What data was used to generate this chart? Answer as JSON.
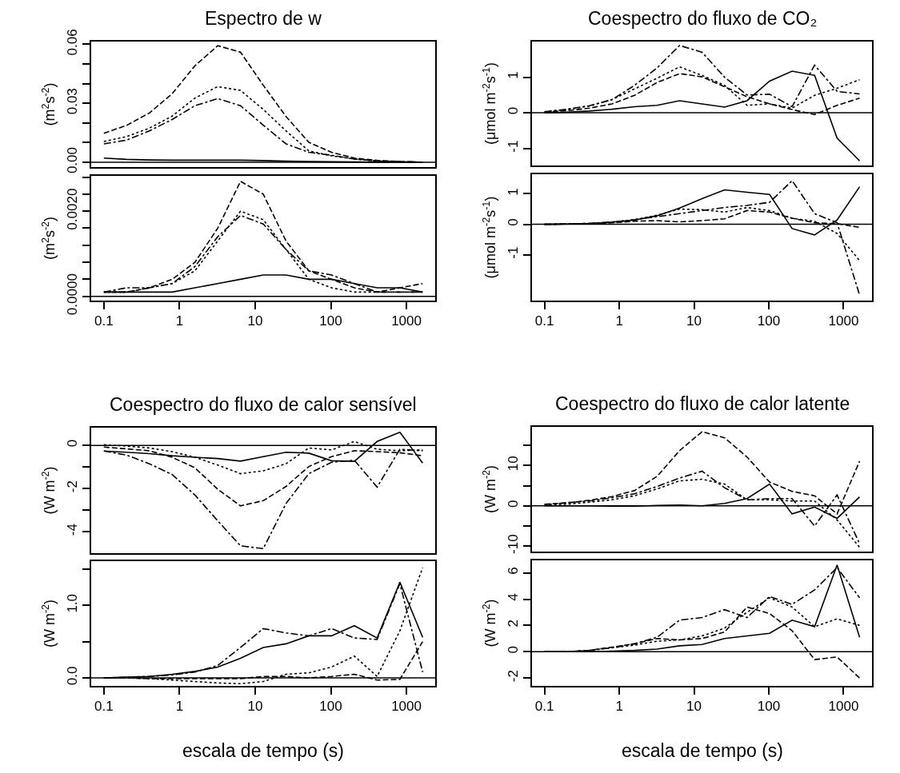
{
  "chart_data": [
    {
      "type": "line",
      "title": "Espectro de w",
      "ylabel": "(m$^{2}$s$^{-2}$)",
      "log": "x",
      "tick_labels": "y",
      "x": [
        0.1,
        0.2,
        0.4,
        0.8,
        1.6,
        3.2,
        6.4,
        12.8,
        25.6,
        51.2,
        102.4,
        204.8,
        409.6,
        819.2,
        1638.4
      ],
      "xlim": [
        0.068,
        2400
      ],
      "xticks": [
        0.1,
        1,
        10,
        100,
        1000
      ],
      "ylim": [
        -0.0024,
        0.0614
      ],
      "yticks": [
        {
          "value": 0,
          "label": "0.00"
        },
        {
          "value": 0.01,
          "label": null
        },
        {
          "value": 0.02,
          "label": null
        },
        {
          "value": 0.03,
          "label": "0.03"
        },
        {
          "value": 0.04,
          "label": null
        },
        {
          "value": 0.05,
          "label": null
        },
        {
          "value": 0.06,
          "label": "0.06"
        }
      ],
      "ref_lines": [
        {
          "axis": "y",
          "value": 0,
          "color": "#000000"
        }
      ],
      "series": [
        {
          "color": "#000000",
          "line_style": "solid",
          "values": [
            0.0022,
            0.0015,
            0.0012,
            0.0011,
            0.0011,
            0.0011,
            0.0011,
            0.0009,
            0.0006,
            0.0004,
            0.0003,
            0.0002,
            0.0001,
            0.0001,
            0.0001
          ]
        },
        {
          "color": "#000000",
          "line_style": "dashed",
          "values": [
            0.0148,
            0.0188,
            0.0251,
            0.0349,
            0.0491,
            0.0593,
            0.056,
            0.0392,
            0.0233,
            0.0102,
            0.0051,
            0.0022,
            0.001,
            0.0004,
            0.0001
          ]
        },
        {
          "color": "#000000",
          "line_style": "dotted",
          "values": [
            0.0106,
            0.0131,
            0.0174,
            0.0235,
            0.0327,
            0.0385,
            0.0366,
            0.0269,
            0.016,
            0.0058,
            0.0033,
            0.0017,
            0.0007,
            0.0003,
            0.0001
          ]
        },
        {
          "color": "#000000",
          "line_style": "dashdot",
          "values": [
            0.0094,
            0.0113,
            0.016,
            0.0218,
            0.0288,
            0.0324,
            0.0288,
            0.0189,
            0.0094,
            0.0051,
            0.0036,
            0.0017,
            0.0007,
            0.0004,
            0.0001
          ]
        }
      ]
    },
    {
      "type": "line",
      "ylabel": "(m$^{2}$s$^{-2}$)",
      "log": "x",
      "x": [
        0.1,
        0.2,
        0.4,
        0.8,
        1.6,
        3.2,
        6.4,
        12.8,
        25.6,
        51.2,
        102.4,
        204.8,
        409.6,
        819.2,
        1638.4
      ],
      "xlim": [
        0.068,
        2400
      ],
      "xticks": [
        0.1,
        1,
        10,
        100,
        1000
      ],
      "ylim": [
        -0.0001,
        0.00283
      ],
      "yticks": [
        {
          "value": 0,
          "label": "0.0000"
        },
        {
          "value": 0.0004,
          "label": null
        },
        {
          "value": 0.0008,
          "label": null
        },
        {
          "value": 0.0012,
          "label": null
        },
        {
          "value": 0.0016,
          "label": null
        },
        {
          "value": 0.002,
          "label": "0.0020"
        },
        {
          "value": 0.0024,
          "label": null
        },
        {
          "value": 0.0028,
          "label": null
        }
      ],
      "ref_lines": [
        {
          "axis": "y",
          "value": 0,
          "color": "#000000"
        }
      ],
      "series": [
        {
          "color": "#000000",
          "line_style": "solid",
          "values": [
            0.0001,
            0.0001,
            0.0001,
            0.0001,
            0.0002,
            0.0003,
            0.0004,
            0.0005,
            0.0005,
            0.0004,
            0.0004,
            0.0003,
            0.0002,
            0.0002,
            0.0001
          ]
        },
        {
          "color": "#000000",
          "line_style": "dashed",
          "values": [
            0.0001,
            0.0001,
            0.0002,
            0.0004,
            0.0008,
            0.0016,
            0.0027,
            0.0024,
            0.0013,
            0.0006,
            0.0004,
            0.0002,
            0.0001,
            0.0002,
            0.0003
          ]
        },
        {
          "color": "#000000",
          "line_style": "dotted",
          "values": [
            0.0001,
            0.0001,
            0.0002,
            0.0003,
            0.0006,
            0.0013,
            0.002,
            0.0018,
            0.0011,
            0.0004,
            0.0002,
            0.0001,
            0.0001,
            0.0001,
            0.0001
          ]
        },
        {
          "color": "#000000",
          "line_style": "dashdot",
          "values": [
            0.0001,
            0.0002,
            0.0002,
            0.0003,
            0.0007,
            0.0014,
            0.0019,
            0.0017,
            0.0011,
            0.0006,
            0.0005,
            0.0003,
            0.0001,
            0.0001,
            0.0001
          ]
        }
      ]
    },
    {
      "type": "line",
      "title": "Coespectro do fluxo de CO₂",
      "ylabel": "(μmol m$^{-2}$s$^{-1}$)",
      "log": "x",
      "tick_labels": "y",
      "x": [
        0.1,
        0.2,
        0.4,
        0.8,
        1.6,
        3.2,
        6.4,
        12.8,
        25.6,
        51.2,
        102.4,
        204.8,
        409.6,
        819.2,
        1638.4
      ],
      "xlim": [
        0.068,
        2400
      ],
      "xticks": [
        0.1,
        1,
        10,
        100,
        1000
      ],
      "ylim": [
        -1.48,
        2.0
      ],
      "yticks": [
        -1,
        0,
        1
      ],
      "ref_lines": [
        {
          "axis": "y",
          "value": 0,
          "color": "#000000"
        }
      ],
      "series": [
        {
          "color": "#000000",
          "line_style": "solid",
          "values": [
            0,
            0.02,
            0.05,
            0.1,
            0.17,
            0.21,
            0.34,
            0.25,
            0.16,
            0.34,
            0.89,
            1.17,
            1.05,
            -0.71,
            -1.35
          ]
        },
        {
          "color": "#000000",
          "line_style": "dashed",
          "values": [
            0.02,
            0.06,
            0.13,
            0.25,
            0.49,
            0.85,
            1.1,
            1.01,
            0.73,
            0.45,
            0.25,
            0.09,
            -0.05,
            0.21,
            0.41
          ]
        },
        {
          "color": "#000000",
          "line_style": "dotted",
          "values": [
            0.03,
            0.09,
            0.19,
            0.37,
            0.67,
            0.97,
            1.29,
            1.05,
            0.77,
            0.21,
            0.25,
            0.13,
            0.49,
            0.69,
            0.93
          ]
        },
        {
          "color": "#000000",
          "line_style": "dashdot",
          "values": [
            0.03,
            0.1,
            0.2,
            0.37,
            0.77,
            1.26,
            1.89,
            1.7,
            1.0,
            0.5,
            0.52,
            0.17,
            1.34,
            0.6,
            0.53
          ]
        }
      ]
    },
    {
      "type": "line",
      "ylabel": "(μmol m$^{-2}$s$^{-1}$)",
      "log": "x",
      "x": [
        0.1,
        0.2,
        0.4,
        0.8,
        1.6,
        3.2,
        6.4,
        12.8,
        25.6,
        51.2,
        102.4,
        204.8,
        409.6,
        819.2,
        1638.4
      ],
      "xlim": [
        0.068,
        2400
      ],
      "xticks": [
        0.1,
        1,
        10,
        100,
        1000
      ],
      "ylim": [
        -2.5,
        1.64
      ],
      "yticks": [
        -1,
        0,
        1
      ],
      "ref_lines": [
        {
          "axis": "y",
          "value": 0,
          "color": "#000000"
        }
      ],
      "series": [
        {
          "color": "#000000",
          "line_style": "solid",
          "values": [
            0,
            0.01,
            0.03,
            0.07,
            0.14,
            0.28,
            0.53,
            0.84,
            1.13,
            1.05,
            0.98,
            -0.14,
            -0.35,
            0.14,
            1.23
          ]
        },
        {
          "color": "#000000",
          "line_style": "dashed",
          "values": [
            0,
            0.01,
            0.02,
            0.05,
            0.1,
            0.12,
            0.08,
            0.12,
            0.18,
            0.45,
            0.4,
            0.2,
            0.05,
            0.02,
            -0.1
          ]
        },
        {
          "color": "#000000",
          "line_style": "dotted",
          "values": [
            0,
            0.01,
            0.03,
            0.07,
            0.15,
            0.3,
            0.5,
            0.48,
            0.4,
            0.55,
            0.45,
            0.2,
            0.1,
            -0.3,
            -1.19
          ]
        },
        {
          "color": "#000000",
          "line_style": "dashdot",
          "values": [
            0,
            0.01,
            0.03,
            0.07,
            0.15,
            0.25,
            0.35,
            0.45,
            0.55,
            0.62,
            0.72,
            1.43,
            0.35,
            0.05,
            -2.32
          ]
        }
      ]
    },
    {
      "type": "line",
      "title": "Coespectro do fluxo de calor sensível",
      "ylabel": "(W m$^{-2}$)",
      "log": "x",
      "tick_labels": "y",
      "x": [
        0.1,
        0.2,
        0.4,
        0.8,
        1.6,
        3.2,
        6.4,
        12.8,
        25.6,
        51.2,
        102.4,
        204.8,
        409.6,
        819.2,
        1638.4
      ],
      "xlim": [
        0.068,
        2400
      ],
      "xticks": [
        0.1,
        1,
        10,
        100,
        1000
      ],
      "ylim": [
        -4.99,
        0.82
      ],
      "yticks": [
        {
          "value": -4,
          "label": "-4"
        },
        {
          "value": -3,
          "label": null
        },
        {
          "value": -2,
          "label": "-2"
        },
        {
          "value": -1,
          "label": null
        },
        {
          "value": 0,
          "label": "0"
        }
      ],
      "ref_lines": [
        {
          "axis": "y",
          "value": 0,
          "color": "#000000"
        }
      ],
      "series": [
        {
          "color": "#000000",
          "line_style": "solid",
          "values": [
            -0.26,
            -0.32,
            -0.38,
            -0.48,
            -0.55,
            -0.61,
            -0.73,
            -0.52,
            -0.32,
            -0.36,
            -0.71,
            -0.74,
            0.18,
            0.61,
            -0.82
          ]
        },
        {
          "color": "#000000",
          "line_style": "dashed",
          "values": [
            -0.08,
            -0.16,
            -0.25,
            -0.55,
            -1.04,
            -2.03,
            -2.8,
            -2.56,
            -1.9,
            -0.98,
            -0.52,
            -0.25,
            -0.29,
            -0.34,
            -0.48
          ]
        },
        {
          "color": "#000000",
          "line_style": "dotted",
          "values": [
            0.03,
            -0.03,
            -0.12,
            -0.29,
            -0.55,
            -0.91,
            -1.31,
            -1.18,
            -0.85,
            -0.12,
            -0.21,
            0.18,
            -0.18,
            -0.25,
            -0.21
          ]
        },
        {
          "color": "#000000",
          "line_style": "dashdot",
          "values": [
            -0.26,
            -0.45,
            -0.85,
            -1.35,
            -2.3,
            -3.49,
            -4.65,
            -4.78,
            -2.69,
            -1.31,
            -0.78,
            -0.69,
            -1.93,
            -0.18,
            -0.25
          ]
        }
      ]
    },
    {
      "type": "line",
      "ylabel": "(W m$^{-2}$)",
      "xlabel": "escala de tempo (s)",
      "log": "x",
      "x": [
        0.1,
        0.2,
        0.4,
        0.8,
        1.6,
        3.2,
        6.4,
        12.8,
        25.6,
        51.2,
        102.4,
        204.8,
        409.6,
        819.2,
        1638.4
      ],
      "xlim": [
        0.068,
        2400
      ],
      "xticks": [
        0.1,
        1,
        10,
        100,
        1000
      ],
      "ylim": [
        -0.11,
        1.61
      ],
      "yticks": [
        {
          "value": 0,
          "label": "0.0"
        },
        {
          "value": 0.5,
          "label": null
        },
        {
          "value": 1.0,
          "label": "1.0"
        },
        {
          "value": 1.5,
          "label": null
        }
      ],
      "ref_lines": [
        {
          "axis": "y",
          "value": 0,
          "color": "#000000"
        }
      ],
      "series": [
        {
          "color": "#000000",
          "line_style": "solid",
          "values": [
            0,
            0.01,
            0.02,
            0.05,
            0.09,
            0.15,
            0.27,
            0.42,
            0.47,
            0.58,
            0.58,
            0.72,
            0.55,
            1.32,
            0.56
          ]
        },
        {
          "color": "#000000",
          "line_style": "dashed",
          "values": [
            0,
            0,
            -0.01,
            -0.01,
            -0.01,
            -0.01,
            -0.01,
            0.02,
            0.02,
            0,
            0.02,
            0.05,
            -0.03,
            -0.02,
            0.5
          ]
        },
        {
          "color": "#000000",
          "line_style": "dotted",
          "values": [
            0,
            0,
            -0.01,
            -0.03,
            -0.05,
            -0.07,
            -0.08,
            -0.05,
            0.05,
            0.07,
            0.15,
            0.3,
            0.02,
            0.65,
            1.52
          ]
        },
        {
          "color": "#000000",
          "line_style": "dashdot",
          "values": [
            0,
            0.01,
            0.02,
            0.04,
            0.08,
            0.17,
            0.42,
            0.68,
            0.62,
            0.58,
            0.68,
            0.55,
            0.53,
            1.3,
            0.08
          ]
        }
      ]
    },
    {
      "type": "line",
      "title": "Coespectro do fluxo de calor latente",
      "ylabel": "(W m$^{-2}$)",
      "log": "x",
      "tick_labels": "y",
      "x": [
        0.1,
        0.2,
        0.4,
        0.8,
        1.6,
        3.2,
        6.4,
        12.8,
        25.6,
        51.2,
        102.4,
        204.8,
        409.6,
        819.2,
        1638.4
      ],
      "xlim": [
        0.068,
        2400
      ],
      "xticks": [
        0.1,
        1,
        10,
        100,
        1000
      ],
      "ylim": [
        -11.35,
        19.6
      ],
      "yticks": [
        {
          "value": -10,
          "label": "-10"
        },
        {
          "value": -5,
          "label": null
        },
        {
          "value": 0,
          "label": "0"
        },
        {
          "value": 5,
          "label": null
        },
        {
          "value": 10,
          "label": "10"
        },
        {
          "value": 15,
          "label": null
        }
      ],
      "ref_lines": [
        {
          "axis": "y",
          "value": 0,
          "color": "#000000"
        }
      ],
      "series": [
        {
          "color": "#000000",
          "line_style": "solid",
          "values": [
            0,
            0,
            0,
            -0.1,
            -0.1,
            0.1,
            0.2,
            0,
            0.6,
            1.8,
            5.4,
            -2.0,
            -0.3,
            -3.1,
            2.2
          ]
        },
        {
          "color": "#000000",
          "line_style": "dashed",
          "values": [
            0.4,
            0.7,
            1.4,
            2.3,
            3.8,
            7.3,
            13.7,
            18.4,
            16.9,
            12.1,
            5.9,
            3.6,
            2.5,
            -2.0,
            11.1
          ]
        },
        {
          "color": "#000000",
          "line_style": "dotted",
          "values": [
            0.2,
            0.4,
            0.9,
            1.5,
            2.5,
            4.2,
            6.2,
            6.6,
            5.4,
            1.5,
            1.5,
            1.2,
            1.2,
            -3.5,
            -10.3
          ]
        },
        {
          "color": "#000000",
          "line_style": "dashdot",
          "values": [
            0.3,
            0.8,
            1.2,
            2.0,
            3.0,
            4.8,
            6.9,
            8.6,
            4.5,
            1.5,
            1.8,
            1.8,
            -5.0,
            2.7,
            -9.4
          ]
        }
      ]
    },
    {
      "type": "line",
      "ylabel": "(W m$^{-2}$)",
      "xlabel": "escala de tempo (s)",
      "log": "x",
      "x": [
        0.1,
        0.2,
        0.4,
        0.8,
        1.6,
        3.2,
        6.4,
        12.8,
        25.6,
        51.2,
        102.4,
        204.8,
        409.6,
        819.2,
        1638.4
      ],
      "xlim": [
        0.068,
        2400
      ],
      "xticks": [
        0.1,
        1,
        10,
        100,
        1000
      ],
      "ylim": [
        -2.6,
        6.95
      ],
      "yticks": [
        -2,
        0,
        2,
        4,
        6
      ],
      "ref_lines": [
        {
          "axis": "y",
          "value": 0,
          "color": "#000000"
        }
      ],
      "series": [
        {
          "color": "#000000",
          "line_style": "solid",
          "values": [
            0,
            0,
            0,
            0.05,
            0.1,
            0.2,
            0.45,
            0.55,
            1.0,
            1.2,
            1.4,
            2.4,
            1.9,
            6.6,
            1.1
          ]
        },
        {
          "color": "#000000",
          "line_style": "dashed",
          "values": [
            0,
            0,
            0.1,
            0.35,
            0.6,
            1.0,
            0.9,
            1.0,
            1.5,
            3.4,
            2.9,
            1.6,
            -0.6,
            -0.4,
            -2.0
          ]
        },
        {
          "color": "#000000",
          "line_style": "dotted",
          "values": [
            0,
            0,
            0.1,
            0.3,
            0.5,
            0.8,
            0.9,
            1.2,
            1.8,
            3.0,
            4.1,
            3.4,
            1.9,
            2.5,
            2.0
          ]
        },
        {
          "color": "#000000",
          "line_style": "dashdot",
          "values": [
            0,
            0,
            0.1,
            0.3,
            0.6,
            1.1,
            2.4,
            2.6,
            3.2,
            2.6,
            4.2,
            3.6,
            4.7,
            6.4,
            4.1
          ]
        }
      ]
    }
  ]
}
